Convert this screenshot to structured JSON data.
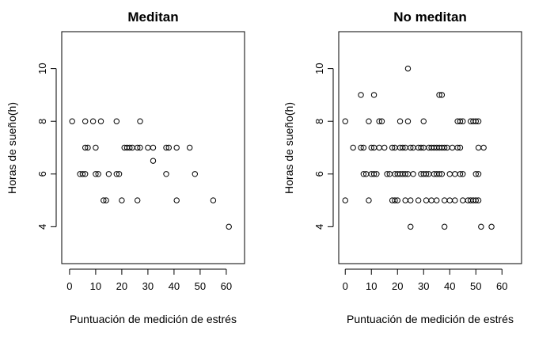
{
  "chart_data": [
    {
      "type": "scatter",
      "title": "Meditan",
      "xlabel": "Puntuación de medición de estrés",
      "ylabel": "Horas de sueño(h)",
      "xlim": [
        -3,
        67
      ],
      "ylim": [
        2.6,
        11.4
      ],
      "xticks": [
        0,
        10,
        20,
        30,
        40,
        50,
        60
      ],
      "yticks": [
        4,
        6,
        8,
        10
      ],
      "grid": false,
      "points": [
        [
          1,
          8
        ],
        [
          4,
          6
        ],
        [
          5,
          6
        ],
        [
          6,
          7
        ],
        [
          6,
          8
        ],
        [
          6,
          6
        ],
        [
          7,
          7
        ],
        [
          9,
          8
        ],
        [
          10,
          7
        ],
        [
          10,
          6
        ],
        [
          11,
          6
        ],
        [
          12,
          8
        ],
        [
          13,
          5
        ],
        [
          14,
          5
        ],
        [
          15,
          6
        ],
        [
          18,
          6
        ],
        [
          18,
          8
        ],
        [
          19,
          6
        ],
        [
          20,
          5
        ],
        [
          21,
          7
        ],
        [
          22,
          7
        ],
        [
          23,
          7
        ],
        [
          24,
          7
        ],
        [
          26,
          5
        ],
        [
          26,
          7
        ],
        [
          27,
          7
        ],
        [
          27,
          8
        ],
        [
          30,
          7
        ],
        [
          32,
          6.5
        ],
        [
          32,
          7
        ],
        [
          37,
          7
        ],
        [
          38,
          7
        ],
        [
          37,
          6
        ],
        [
          41,
          7
        ],
        [
          41,
          5
        ],
        [
          46,
          7
        ],
        [
          48,
          6
        ],
        [
          55,
          5
        ],
        [
          61,
          4
        ]
      ]
    },
    {
      "type": "scatter",
      "title": "No meditan",
      "xlabel": "Puntuación de medición de estrés",
      "ylabel": "Horas de sueño(h)",
      "xlim": [
        -2.5,
        67.5
      ],
      "ylim": [
        2.6,
        11.4
      ],
      "xticks": [
        0,
        10,
        20,
        30,
        40,
        50,
        60
      ],
      "yticks": [
        4,
        6,
        8,
        10
      ],
      "grid": false,
      "points": [
        [
          0,
          8
        ],
        [
          0,
          5
        ],
        [
          3,
          7
        ],
        [
          6,
          9
        ],
        [
          6,
          7
        ],
        [
          7,
          7
        ],
        [
          7,
          6
        ],
        [
          8,
          6
        ],
        [
          9,
          5
        ],
        [
          9,
          8
        ],
        [
          10,
          7
        ],
        [
          10,
          6
        ],
        [
          11,
          9
        ],
        [
          11,
          7
        ],
        [
          11,
          6
        ],
        [
          12,
          6
        ],
        [
          13,
          8
        ],
        [
          13,
          7
        ],
        [
          14,
          8
        ],
        [
          15,
          7
        ],
        [
          16,
          6
        ],
        [
          17,
          6
        ],
        [
          18,
          7
        ],
        [
          18,
          5
        ],
        [
          19,
          7
        ],
        [
          19,
          6
        ],
        [
          19,
          5
        ],
        [
          20,
          6
        ],
        [
          20,
          5
        ],
        [
          21,
          8
        ],
        [
          21,
          7
        ],
        [
          21,
          6
        ],
        [
          22,
          7
        ],
        [
          22,
          6
        ],
        [
          23,
          7
        ],
        [
          23,
          6
        ],
        [
          23,
          5
        ],
        [
          24,
          8
        ],
        [
          24,
          6
        ],
        [
          24,
          10
        ],
        [
          25,
          7
        ],
        [
          25,
          5
        ],
        [
          25,
          4
        ],
        [
          26,
          7
        ],
        [
          26,
          6
        ],
        [
          28,
          7
        ],
        [
          28,
          5
        ],
        [
          29,
          7
        ],
        [
          29,
          6
        ],
        [
          30,
          8
        ],
        [
          30,
          7
        ],
        [
          30,
          6
        ],
        [
          31,
          6
        ],
        [
          31,
          5
        ],
        [
          32,
          7
        ],
        [
          32,
          6
        ],
        [
          33,
          7
        ],
        [
          33,
          5
        ],
        [
          34,
          7
        ],
        [
          34,
          6
        ],
        [
          35,
          7
        ],
        [
          35,
          6
        ],
        [
          35,
          5
        ],
        [
          36,
          9
        ],
        [
          36,
          7
        ],
        [
          36,
          6
        ],
        [
          37,
          9
        ],
        [
          37,
          7
        ],
        [
          37,
          6
        ],
        [
          38,
          7
        ],
        [
          38,
          5
        ],
        [
          38,
          4
        ],
        [
          39,
          7
        ],
        [
          40,
          6
        ],
        [
          40,
          5
        ],
        [
          41,
          7
        ],
        [
          42,
          6
        ],
        [
          42,
          5
        ],
        [
          43,
          8
        ],
        [
          43,
          7
        ],
        [
          44,
          8
        ],
        [
          44,
          7
        ],
        [
          44,
          6
        ],
        [
          45,
          8
        ],
        [
          45,
          6
        ],
        [
          45,
          5
        ],
        [
          47,
          5
        ],
        [
          48,
          8
        ],
        [
          48,
          5
        ],
        [
          49,
          8
        ],
        [
          49,
          5
        ],
        [
          50,
          8
        ],
        [
          50,
          6
        ],
        [
          50,
          5
        ],
        [
          51,
          8
        ],
        [
          51,
          7
        ],
        [
          51,
          6
        ],
        [
          51,
          5
        ],
        [
          52,
          4
        ],
        [
          53,
          7
        ],
        [
          56,
          4
        ]
      ]
    }
  ]
}
